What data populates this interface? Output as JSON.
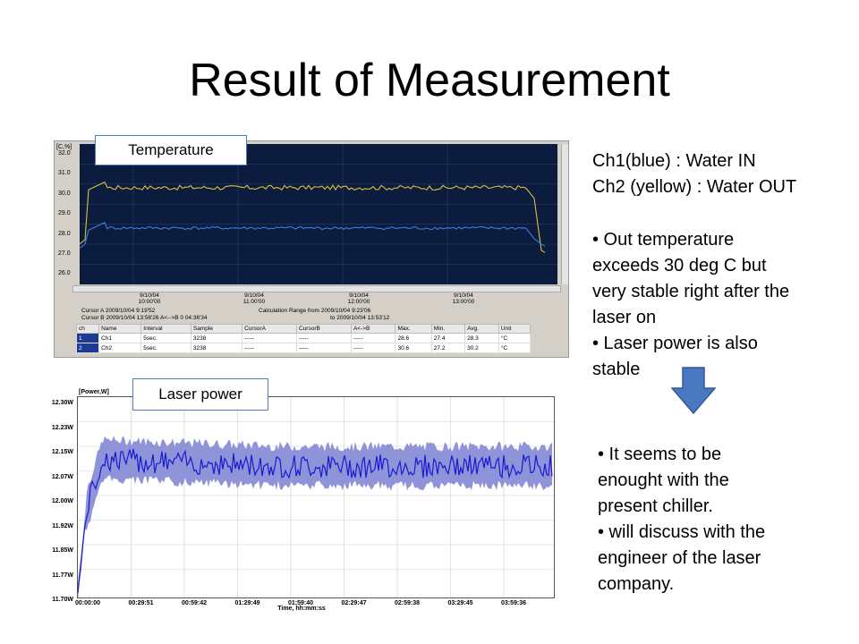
{
  "slide": {
    "title": "Result of Measurement"
  },
  "temperature_panel": {
    "tag": "Temperature",
    "y_unit": "[C,%]",
    "y_ticks": [
      "32.0",
      "31.0",
      "30.0",
      "29.0",
      "28.0",
      "27.0",
      "26.0"
    ],
    "x_dates": [
      {
        "date": "9/10/04",
        "time": "10:00'00"
      },
      {
        "date": "9/10/04",
        "time": "11:00'00"
      },
      {
        "date": "9/10/04",
        "time": "12:00'00"
      },
      {
        "date": "9/10/04",
        "time": "13:00'00"
      }
    ],
    "cursor_a": "Cursor A  2009/10/04  9:19'52",
    "cursor_b": "Cursor B  2009/10/04 13:56'26   A<-->B  0 04:36'34",
    "calc_range_from": "Calculation Range from 2009/10/04  9:23'06",
    "calc_range_to": "to 2009/10/04 13:53'12",
    "table_headers": [
      "ch",
      "Name",
      "Interval",
      "Sample",
      "CursorA",
      "CursorB",
      "A<->B",
      "Max.",
      "Min.",
      "Avg.",
      "Unit"
    ],
    "table_rows": [
      [
        "1",
        "Ch1",
        "5sec.",
        "3238",
        "-----",
        "-----",
        "-----",
        "28.6",
        "27.4",
        "28.3",
        "°C"
      ],
      [
        "2",
        "Ch2",
        "5sec.",
        "3238",
        "-----",
        "-----",
        "-----",
        "30.6",
        "27.2",
        "30.2",
        "°C"
      ]
    ],
    "series_colors": {
      "ch1": "#3d7fe0",
      "ch2": "#d9c23a",
      "background": "#0b1c3e"
    }
  },
  "laser_panel": {
    "tag": "Laser power",
    "y_unit": "[Power,W]",
    "y_ticks": [
      "12.30W",
      "12.23W",
      "12.15W",
      "12.07W",
      "12.00W",
      "11.92W",
      "11.85W",
      "11.77W",
      "11.70W"
    ],
    "x_ticks": [
      "00:00:00",
      "00:29:51",
      "00:59:42",
      "01:29:49",
      "01:59:40",
      "02:29:47",
      "02:59:38",
      "03:29:45",
      "03:59:36"
    ],
    "x_label": "Time, hh:mm:ss",
    "series_color": "#1a1ad0",
    "band_color": "#8f93d8"
  },
  "notes": {
    "channels": "Ch1(blue) : Water IN\nCh2 (yellow) : Water OUT",
    "observations": "• Out temperature\nexceeds 30 deg C but\nvery stable right after the\nlaser on\n• Laser power is also\nstable",
    "conclusion": "• It seems to be\nenought with the\npresent chiller.\n• will discuss with the\nengineer of the laser\ncompany."
  },
  "arrow": {
    "color": "#4a78c0",
    "icon": "down-arrow-icon"
  }
}
